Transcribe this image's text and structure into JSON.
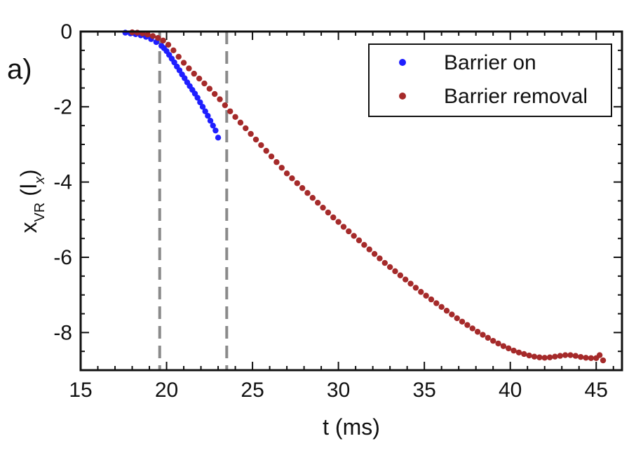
{
  "chart_data": {
    "type": "scatter",
    "panel_label": "a)",
    "xlabel": "t (ms)",
    "ylabel": "x",
    "ylabel_subscript": "VR",
    "ylabel_unit_prefix": " (l",
    "ylabel_unit_subscript": "x",
    "ylabel_unit_suffix": ")",
    "xlim": [
      15,
      46.5
    ],
    "ylim": [
      -9,
      0
    ],
    "xticks": [
      15,
      20,
      25,
      30,
      35,
      40,
      45
    ],
    "yticks": [
      0,
      -2,
      -4,
      -6,
      -8
    ],
    "vertical_lines": [
      19.6,
      23.5
    ],
    "legend_position": "top-right",
    "series": [
      {
        "name": "Barrier on",
        "color": "#1f1fff",
        "x": [
          17.6,
          17.9,
          18.2,
          18.5,
          18.8,
          19.1,
          19.4,
          19.7,
          19.85,
          20.0,
          20.15,
          20.3,
          20.45,
          20.6,
          20.75,
          20.9,
          21.05,
          21.2,
          21.35,
          21.5,
          21.65,
          21.8,
          21.95,
          22.1,
          22.25,
          22.4,
          22.55,
          22.7,
          22.85,
          23.0
        ],
        "y": [
          -0.03,
          -0.05,
          -0.07,
          -0.1,
          -0.14,
          -0.2,
          -0.28,
          -0.38,
          -0.44,
          -0.52,
          -0.62,
          -0.72,
          -0.82,
          -0.93,
          -1.03,
          -1.14,
          -1.24,
          -1.35,
          -1.45,
          -1.55,
          -1.65,
          -1.76,
          -1.88,
          -2.0,
          -2.12,
          -2.24,
          -2.37,
          -2.5,
          -2.63,
          -2.82
        ]
      },
      {
        "name": "Barrier removal",
        "color": "#a52a2a",
        "x": [
          18.0,
          18.3,
          18.6,
          18.9,
          19.2,
          19.5,
          19.8,
          20.1,
          20.4,
          20.7,
          21.0,
          21.3,
          21.6,
          21.9,
          22.2,
          22.5,
          22.8,
          23.1,
          23.4,
          23.7,
          24.0,
          24.3,
          24.6,
          24.9,
          25.2,
          25.5,
          25.8,
          26.1,
          26.4,
          26.7,
          27.0,
          27.3,
          27.6,
          27.9,
          28.2,
          28.5,
          28.8,
          29.1,
          29.4,
          29.7,
          30.0,
          30.3,
          30.6,
          30.9,
          31.2,
          31.5,
          31.8,
          32.1,
          32.4,
          32.7,
          33.0,
          33.3,
          33.6,
          33.9,
          34.2,
          34.5,
          34.8,
          35.1,
          35.4,
          35.7,
          36.0,
          36.3,
          36.6,
          36.9,
          37.2,
          37.5,
          37.8,
          38.1,
          38.4,
          38.7,
          39.0,
          39.3,
          39.6,
          39.9,
          40.2,
          40.5,
          40.8,
          41.1,
          41.4,
          41.7,
          42.0,
          42.3,
          42.6,
          42.9,
          43.2,
          43.5,
          43.8,
          44.1,
          44.4,
          44.7,
          45.0,
          45.2,
          45.4
        ],
        "y": [
          -0.02,
          -0.03,
          -0.05,
          -0.08,
          -0.12,
          -0.17,
          -0.24,
          -0.35,
          -0.5,
          -0.67,
          -0.83,
          -0.98,
          -1.12,
          -1.25,
          -1.38,
          -1.52,
          -1.66,
          -1.8,
          -1.96,
          -2.12,
          -2.27,
          -2.42,
          -2.57,
          -2.72,
          -2.87,
          -3.02,
          -3.17,
          -3.32,
          -3.47,
          -3.62,
          -3.77,
          -3.9,
          -4.03,
          -4.16,
          -4.29,
          -4.42,
          -4.55,
          -4.68,
          -4.81,
          -4.94,
          -5.06,
          -5.19,
          -5.31,
          -5.43,
          -5.55,
          -5.67,
          -5.79,
          -5.91,
          -6.03,
          -6.15,
          -6.26,
          -6.37,
          -6.48,
          -6.59,
          -6.7,
          -6.81,
          -6.92,
          -7.02,
          -7.12,
          -7.22,
          -7.32,
          -7.42,
          -7.52,
          -7.62,
          -7.71,
          -7.8,
          -7.89,
          -7.98,
          -8.06,
          -8.14,
          -8.22,
          -8.29,
          -8.36,
          -8.42,
          -8.48,
          -8.53,
          -8.57,
          -8.61,
          -8.64,
          -8.66,
          -8.67,
          -8.66,
          -8.64,
          -8.62,
          -8.6,
          -8.6,
          -8.62,
          -8.65,
          -8.67,
          -8.68,
          -8.68,
          -8.6,
          -8.74
        ]
      }
    ]
  }
}
